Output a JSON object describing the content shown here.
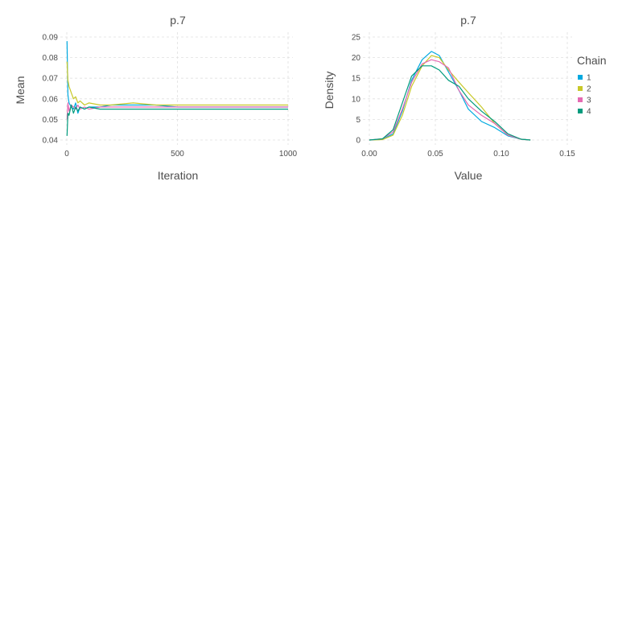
{
  "chart_data": [
    {
      "type": "line",
      "title": "p.7",
      "xlabel": "Iteration",
      "ylabel": "Mean",
      "xlim": [
        0,
        1000
      ],
      "ylim": [
        0.04,
        0.09
      ],
      "xticks": [
        0,
        500,
        1000
      ],
      "yticks": [
        0.04,
        0.05,
        0.06,
        0.07,
        0.08,
        0.09
      ],
      "grid": true,
      "series": [
        {
          "name": "1",
          "x": [
            1,
            5,
            10,
            20,
            30,
            40,
            50,
            60,
            80,
            100,
            150,
            200,
            300,
            400,
            500,
            600,
            700,
            800,
            900,
            1000
          ],
          "y": [
            0.088,
            0.062,
            0.058,
            0.056,
            0.055,
            0.058,
            0.053,
            0.056,
            0.055,
            0.056,
            0.056,
            0.057,
            0.057,
            0.057,
            0.056,
            0.056,
            0.056,
            0.056,
            0.056,
            0.056
          ]
        },
        {
          "name": "2",
          "x": [
            1,
            5,
            10,
            20,
            30,
            40,
            50,
            60,
            80,
            100,
            150,
            200,
            300,
            400,
            500,
            600,
            700,
            800,
            900,
            1000
          ],
          "y": [
            0.078,
            0.069,
            0.066,
            0.063,
            0.06,
            0.061,
            0.058,
            0.059,
            0.057,
            0.058,
            0.057,
            0.057,
            0.058,
            0.057,
            0.057,
            0.057,
            0.057,
            0.057,
            0.057,
            0.057
          ]
        },
        {
          "name": "3",
          "x": [
            1,
            5,
            10,
            20,
            30,
            40,
            50,
            60,
            80,
            100,
            150,
            200,
            300,
            400,
            500,
            600,
            700,
            800,
            900,
            1000
          ],
          "y": [
            0.05,
            0.058,
            0.054,
            0.057,
            0.056,
            0.055,
            0.057,
            0.055,
            0.056,
            0.055,
            0.056,
            0.056,
            0.056,
            0.056,
            0.056,
            0.056,
            0.056,
            0.056,
            0.056,
            0.056
          ]
        },
        {
          "name": "4",
          "x": [
            1,
            5,
            10,
            20,
            30,
            40,
            50,
            60,
            80,
            100,
            150,
            200,
            300,
            400,
            500,
            600,
            700,
            800,
            900,
            1000
          ],
          "y": [
            0.042,
            0.053,
            0.052,
            0.057,
            0.053,
            0.056,
            0.054,
            0.056,
            0.055,
            0.056,
            0.055,
            0.055,
            0.055,
            0.055,
            0.055,
            0.055,
            0.055,
            0.055,
            0.055,
            0.055
          ]
        }
      ]
    },
    {
      "type": "line",
      "title": "p.7",
      "xlabel": "Value",
      "ylabel": "Density",
      "xlim": [
        0,
        0.15
      ],
      "ylim": [
        0,
        25
      ],
      "xticks": [
        "0.00",
        "0.05",
        "0.10",
        "0.15"
      ],
      "xtick_values": [
        0,
        0.05,
        0.1,
        0.15
      ],
      "yticks": [
        0,
        5,
        10,
        15,
        20,
        25
      ],
      "grid": true,
      "legend": {
        "title": "Chain",
        "position": "right"
      },
      "series": [
        {
          "name": "1",
          "x": [
            0.0,
            0.01,
            0.018,
            0.025,
            0.032,
            0.04,
            0.047,
            0.053,
            0.06,
            0.068,
            0.075,
            0.085,
            0.095,
            0.105,
            0.115,
            0.122
          ],
          "y": [
            0,
            0.2,
            1.5,
            7,
            14.5,
            19.5,
            21.5,
            20.5,
            16.5,
            12,
            7.5,
            4.5,
            3,
            1,
            0.2,
            0
          ]
        },
        {
          "name": "2",
          "x": [
            0.0,
            0.01,
            0.018,
            0.025,
            0.032,
            0.04,
            0.047,
            0.053,
            0.06,
            0.068,
            0.075,
            0.085,
            0.095,
            0.105,
            0.115,
            0.122
          ],
          "y": [
            0,
            0.1,
            1.2,
            6,
            13,
            18,
            20.5,
            20,
            17,
            14,
            11.5,
            8,
            4,
            1.2,
            0.2,
            0
          ]
        },
        {
          "name": "3",
          "x": [
            0.0,
            0.01,
            0.018,
            0.025,
            0.032,
            0.04,
            0.047,
            0.053,
            0.06,
            0.068,
            0.075,
            0.085,
            0.095,
            0.105,
            0.115,
            0.122
          ],
          "y": [
            0,
            0.3,
            2,
            7.5,
            14,
            18.5,
            19.5,
            19,
            17.5,
            12,
            8.5,
            6,
            4,
            1.2,
            0.2,
            0
          ]
        },
        {
          "name": "4",
          "x": [
            0.0,
            0.01,
            0.018,
            0.025,
            0.032,
            0.04,
            0.047,
            0.053,
            0.06,
            0.068,
            0.075,
            0.085,
            0.095,
            0.105,
            0.115,
            0.122
          ],
          "y": [
            0,
            0.3,
            2.5,
            9,
            15.5,
            18,
            18,
            17,
            14.5,
            13,
            10,
            7,
            4.5,
            1.5,
            0.2,
            0
          ]
        }
      ]
    }
  ],
  "colors": {
    "1": "#00a9e0",
    "2": "#c8c828",
    "3": "#e56ab2",
    "4": "#009b7d"
  },
  "legend": {
    "title": "Chain",
    "items": [
      "1",
      "2",
      "3",
      "4"
    ]
  }
}
